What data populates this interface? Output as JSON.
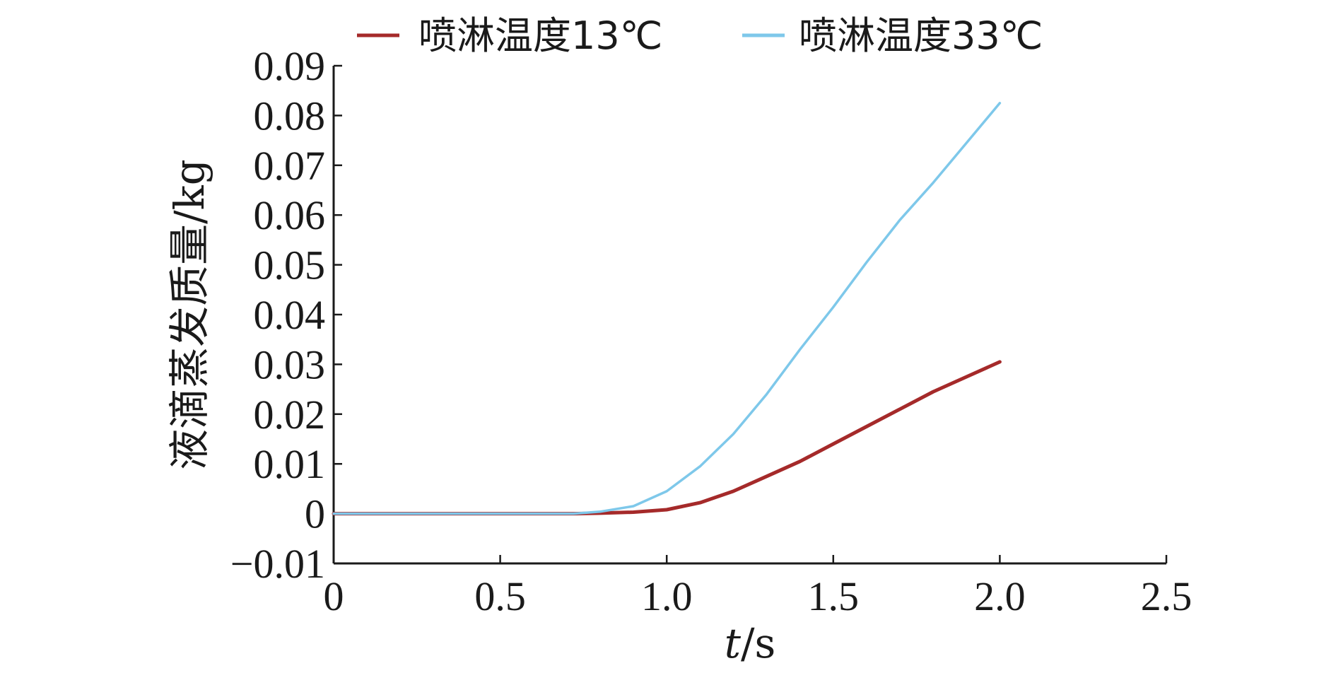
{
  "chart_data": {
    "type": "line",
    "title": "",
    "xlabel_italic": "t",
    "xlabel_unit": "/s",
    "ylabel": "液滴蒸发质量/kg",
    "xlim": [
      0,
      2.5
    ],
    "ylim": [
      -0.01,
      0.09
    ],
    "xticks": [
      0,
      0.5,
      1.0,
      1.5,
      2.0,
      2.5
    ],
    "xtick_labels": [
      "0",
      "0.5",
      "1.0",
      "1.5",
      "2.0",
      "2.5"
    ],
    "yticks": [
      -0.01,
      0,
      0.01,
      0.02,
      0.03,
      0.04,
      0.05,
      0.06,
      0.07,
      0.08,
      0.09
    ],
    "ytick_labels": [
      "−0.01",
      "0",
      "0.01",
      "0.02",
      "0.03",
      "0.04",
      "0.05",
      "0.06",
      "0.07",
      "0.08",
      "0.09"
    ],
    "grid": false,
    "legend_placement": "top",
    "series": [
      {
        "name": "喷淋温度13℃",
        "color": "#a52a2a",
        "x": [
          0,
          0.5,
          0.72,
          0.8,
          0.9,
          1.0,
          1.1,
          1.2,
          1.3,
          1.4,
          1.5,
          1.6,
          1.7,
          1.8,
          1.9,
          2.0
        ],
        "y": [
          0,
          0,
          0,
          0.0001,
          0.0003,
          0.0008,
          0.0022,
          0.0045,
          0.0075,
          0.0105,
          0.014,
          0.0175,
          0.021,
          0.0245,
          0.0275,
          0.0305
        ]
      },
      {
        "name": "喷淋温度33℃",
        "color": "#7ec8ea",
        "x": [
          0,
          0.5,
          0.72,
          0.8,
          0.9,
          1.0,
          1.1,
          1.2,
          1.3,
          1.4,
          1.5,
          1.6,
          1.7,
          1.8,
          1.9,
          2.0
        ],
        "y": [
          0,
          0,
          0,
          0.0004,
          0.0015,
          0.0045,
          0.0095,
          0.016,
          0.024,
          0.033,
          0.0415,
          0.0505,
          0.059,
          0.0665,
          0.0745,
          0.0825
        ]
      }
    ]
  }
}
